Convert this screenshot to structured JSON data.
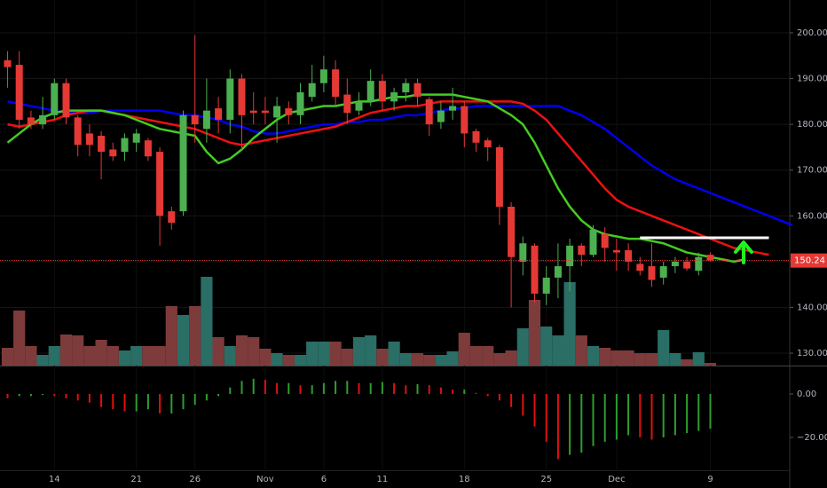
{
  "chart_data": {
    "type": "candlestick",
    "categories": [
      null,
      null,
      null,
      null,
      "14",
      null,
      null,
      null,
      null,
      null,
      null,
      "21",
      null,
      null,
      null,
      null,
      "26",
      null,
      null,
      null,
      null,
      null,
      "Nov",
      null,
      null,
      null,
      null,
      "6",
      null,
      null,
      null,
      null,
      "11",
      null,
      null,
      null,
      null,
      null,
      null,
      "18",
      null,
      null,
      null,
      null,
      null,
      null,
      "25",
      null,
      null,
      null,
      null,
      null,
      "Dec",
      null,
      null,
      null,
      null,
      null,
      null,
      null,
      "9",
      null,
      null,
      null,
      null,
      null,
      null,
      null
    ],
    "open": [
      194,
      193,
      181.5,
      180,
      182,
      189,
      181.5,
      178,
      177.5,
      174.5,
      174,
      176,
      176.5,
      174,
      161,
      161,
      182,
      179,
      183.5,
      181,
      190,
      183,
      183,
      181.5,
      183.5,
      182,
      186,
      189,
      192,
      186.5,
      183,
      185,
      189.5,
      185,
      187,
      189,
      185.5,
      180.5,
      183,
      184,
      178.5,
      176.5,
      175,
      162,
      150,
      153.5,
      143,
      146.5,
      149,
      153.5,
      151.5,
      156,
      152.5,
      152.5,
      149.5,
      149,
      146.5,
      149,
      150,
      148,
      151.5,
      null,
      null,
      null,
      null,
      null,
      null,
      null
    ],
    "high": [
      196,
      196,
      183,
      186,
      190,
      190,
      182,
      180,
      178.5,
      176,
      178,
      179,
      177,
      175,
      162,
      183,
      199.5,
      190,
      186,
      192,
      191,
      187,
      186,
      186,
      185,
      189,
      193,
      195,
      194,
      190,
      187,
      192,
      191,
      188,
      190,
      190,
      186,
      185,
      188,
      185,
      179,
      177,
      175.5,
      163,
      155.5,
      154,
      149,
      154,
      155,
      154,
      158,
      157.5,
      155,
      154,
      151,
      154,
      150,
      151,
      151,
      152,
      152,
      null,
      null,
      null,
      null,
      null,
      null,
      null
    ],
    "low": [
      188,
      179,
      179,
      179,
      181,
      180,
      173,
      173,
      168,
      172,
      172,
      174,
      172,
      153.5,
      157,
      160,
      176,
      176,
      178,
      178,
      174.5,
      180,
      180,
      176,
      180,
      180,
      185,
      187,
      184,
      180,
      182,
      184,
      183,
      183,
      185,
      184,
      177.5,
      179,
      181,
      175,
      174,
      172,
      158,
      140,
      147,
      141,
      140.5,
      142,
      143.5,
      149,
      151,
      150,
      148,
      148,
      147,
      144.5,
      145,
      147.5,
      148,
      147,
      150,
      null,
      null,
      null,
      null,
      null,
      null,
      null
    ],
    "close": [
      192.5,
      181,
      180,
      182,
      189,
      181.5,
      175.5,
      175.5,
      174,
      173,
      177,
      178,
      173,
      160,
      158.5,
      182,
      180,
      183,
      181,
      190,
      182,
      182.5,
      182.5,
      184,
      182,
      187,
      189,
      192,
      186,
      182.5,
      185,
      189.5,
      185,
      187,
      189,
      186,
      180,
      183,
      184,
      178,
      176,
      175,
      162,
      151,
      154,
      143,
      146.5,
      149,
      153.5,
      151.5,
      157,
      153,
      152,
      150,
      148,
      146,
      149,
      150,
      148.5,
      151,
      150.24,
      null,
      null,
      null,
      null,
      null,
      null,
      null
    ],
    "up_color": "#4caf50",
    "down_color": "#e53935",
    "ylim": [
      127.29,
      207.17
    ],
    "yticks": [
      {
        "value": 130,
        "label": "130.00"
      },
      {
        "value": 140,
        "label": "140.00"
      },
      {
        "value": 150,
        "label": "150.00"
      },
      {
        "value": 160,
        "label": "160.00"
      },
      {
        "value": 170,
        "label": "170.00"
      },
      {
        "value": 180,
        "label": "180.00"
      },
      {
        "value": 190,
        "label": "190.00"
      },
      {
        "value": 200,
        "label": "200.00"
      }
    ],
    "grid": true,
    "lines": [
      {
        "color": "#0000ee",
        "values": [
          185,
          184.5,
          184,
          183.5,
          183,
          182.5,
          182.5,
          182.5,
          183,
          183,
          183,
          183,
          183,
          183,
          182.5,
          182,
          182,
          181.5,
          181,
          180,
          179.5,
          178.5,
          178,
          178,
          178.5,
          179,
          179.5,
          180,
          180,
          180.5,
          180.5,
          181,
          181,
          181.5,
          182,
          182,
          182.5,
          183,
          183.5,
          183.5,
          184,
          184,
          184,
          184,
          184,
          184,
          184,
          184,
          183,
          182,
          180.5,
          179,
          177,
          175,
          173,
          171,
          169.5,
          168,
          167,
          166,
          165,
          164,
          163,
          162,
          161,
          160,
          159,
          158
        ]
      },
      {
        "color": "#ee1111",
        "values": [
          180,
          179.5,
          180,
          180.5,
          181,
          182,
          182.5,
          183,
          183,
          182.5,
          182,
          181.5,
          181,
          180.5,
          180,
          179.5,
          179,
          178,
          177,
          176,
          175.5,
          176,
          176.5,
          177,
          177.5,
          178,
          178.5,
          179,
          179.5,
          180.5,
          181.5,
          182.5,
          183,
          183.5,
          184,
          184,
          184.5,
          185,
          185,
          185,
          185,
          185,
          185,
          185,
          184.5,
          183,
          181,
          178,
          175,
          172,
          169,
          166,
          163.5,
          162,
          161,
          160,
          159,
          158,
          157,
          156,
          155,
          154,
          153,
          152.5,
          152,
          151.5,
          null,
          null
        ]
      },
      {
        "color": "#44cc22",
        "values": [
          176,
          178,
          180,
          181.5,
          182.5,
          183,
          183,
          183,
          183,
          182.5,
          182,
          181,
          180,
          179,
          178.5,
          178,
          177.5,
          174,
          171.5,
          172.5,
          174.5,
          177,
          179,
          181,
          182.5,
          183,
          183.5,
          184,
          184,
          184.5,
          185,
          185,
          185.5,
          186,
          186,
          186.5,
          186.5,
          186.5,
          186.5,
          186,
          185.5,
          185,
          183.5,
          182,
          180,
          176,
          171,
          166,
          162,
          159,
          157,
          156,
          155.5,
          155,
          155,
          154.5,
          154,
          153,
          152,
          151.5,
          151,
          150.5,
          150,
          150.5,
          null,
          null,
          null,
          null
        ]
      }
    ],
    "last_price": {
      "value": 150.24,
      "color": "#e53935"
    },
    "hline": {
      "value": 155.2,
      "start": 54,
      "end": 65,
      "color": "#ffffff"
    },
    "volume": {
      "ylim": [
        0,
        100
      ],
      "up_color": "#2a6e66",
      "down_color": "#7e3b3b",
      "values": [
        20,
        62,
        22,
        12,
        22,
        35,
        34,
        22,
        29,
        22,
        17,
        22,
        22,
        22,
        67,
        57,
        67,
        100,
        32,
        22,
        34,
        32,
        19,
        14,
        12,
        12,
        27,
        27,
        27,
        19,
        32,
        34,
        19,
        27,
        14,
        14,
        12,
        12,
        16,
        37,
        22,
        22,
        14,
        17,
        42,
        74,
        44,
        34,
        94,
        34,
        22,
        20,
        17,
        17,
        14,
        14,
        40,
        14,
        7,
        15,
        3
      ]
    },
    "oscillator": {
      "ylim": [
        -35.1,
        12.65
      ],
      "yticks": [
        {
          "value": 0,
          "label": "0.00"
        },
        {
          "value": -20,
          "label": "−20.00"
        }
      ],
      "values": [
        -2,
        -1,
        -1,
        -0.5,
        -1,
        -2,
        -3,
        -4,
        -6,
        -7,
        -8,
        -8,
        -7,
        -9,
        -9,
        -7,
        -5,
        -3,
        -1,
        3,
        6,
        7,
        6.5,
        5,
        5,
        4,
        4,
        5,
        6,
        6,
        5,
        5,
        5.5,
        5,
        4,
        4.5,
        4,
        3,
        2,
        2,
        0.5,
        -1,
        -3,
        -6,
        -10,
        -15,
        -22,
        -30,
        -28,
        -27,
        -24,
        -22,
        -21,
        -19,
        -20,
        -21,
        -20,
        -19,
        -18,
        -17,
        -16
      ]
    }
  }
}
